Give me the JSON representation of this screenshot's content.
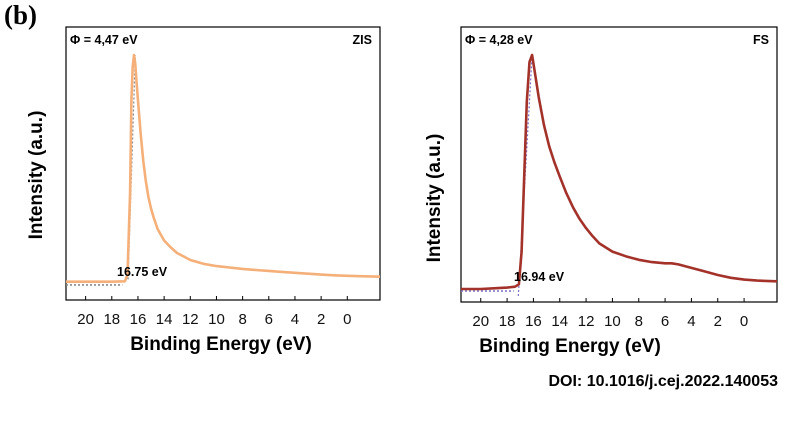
{
  "figure": {
    "panel_label": "(b)",
    "doi": "DOI: 10.1016/j.cej.2022.140053"
  },
  "chart_data": [
    {
      "type": "line",
      "sample_label": "ZIS",
      "work_function_label": "Φ = 4,47 eV",
      "cutoff_label": "16.75 eV",
      "cutoff_value": 16.75,
      "xlabel": "Binding Energy (eV)",
      "ylabel": "Intensity (a.u.)",
      "x_ticks": [
        "20",
        "18",
        "16",
        "14",
        "12",
        "10",
        "8",
        "6",
        "4",
        "2",
        "0"
      ],
      "x_tick_values": [
        20,
        18,
        16,
        14,
        12,
        10,
        8,
        6,
        4,
        2,
        0
      ],
      "xlim": [
        21.5,
        -2.5
      ],
      "ylim": [
        0,
        100
      ],
      "x_reversed": true,
      "grid": false,
      "line_color": "#f5b07a",
      "fit_color": "#8a8a8a",
      "x": [
        21.5,
        20,
        18,
        17,
        16.8,
        16.6,
        16.5,
        16.4,
        16.3,
        16.2,
        16.1,
        16.0,
        15.8,
        15.6,
        15.4,
        15.2,
        15.0,
        14.8,
        14.5,
        14.2,
        14.0,
        13.5,
        13.0,
        12.5,
        12.0,
        11.0,
        10.0,
        9.0,
        8.0,
        7.0,
        6.0,
        5.0,
        4.0,
        3.0,
        2.0,
        1.0,
        0.0,
        -1.0,
        -2.5
      ],
      "y": [
        1,
        1,
        1,
        1.2,
        4,
        40,
        80,
        95,
        100,
        96,
        88,
        80,
        66,
        54,
        45,
        38,
        33,
        29,
        24,
        21,
        19,
        16,
        13.5,
        12,
        10.5,
        8.8,
        7.8,
        7.2,
        6.6,
        6.1,
        5.7,
        5.3,
        4.9,
        4.5,
        4.1,
        3.8,
        3.6,
        3.4,
        3.2
      ],
      "fit_x": [
        21.5,
        17.2
      ],
      "fit_y": [
        0.5,
        0.5
      ],
      "edge_x": [
        16.75,
        16.2
      ],
      "edge_y": [
        2,
        100
      ]
    },
    {
      "type": "line",
      "sample_label": "FS",
      "work_function_label": "Φ = 4,28 eV",
      "cutoff_label": "16.94 eV",
      "cutoff_value": 16.94,
      "xlabel": "Binding Energy (eV)",
      "ylabel": "Intensity (a.u.)",
      "x_ticks": [
        "20",
        "18",
        "16",
        "14",
        "12",
        "10",
        "8",
        "6",
        "4",
        "2",
        "0"
      ],
      "x_tick_values": [
        20,
        18,
        16,
        14,
        12,
        10,
        8,
        6,
        4,
        2,
        0
      ],
      "xlim": [
        21.5,
        -2.5
      ],
      "ylim": [
        0,
        100
      ],
      "x_reversed": true,
      "grid": false,
      "line_color": "#a3322a",
      "fit_color": "#7b6fc4",
      "x": [
        21.5,
        20,
        19,
        18,
        17.4,
        17.1,
        16.9,
        16.7,
        16.5,
        16.3,
        16.1,
        15.9,
        15.6,
        15.2,
        14.8,
        14.4,
        14.0,
        13.5,
        13.0,
        12.5,
        12.0,
        11.5,
        11.0,
        10.0,
        9.0,
        8.0,
        7.0,
        6.0,
        5.5,
        5.0,
        4.0,
        3.0,
        2.0,
        1.0,
        0.0,
        -1.0,
        -2.5
      ],
      "y": [
        0,
        0,
        0.3,
        0.6,
        1,
        2,
        16,
        48,
        80,
        97,
        100,
        93,
        82,
        70,
        61,
        54,
        48,
        41,
        35,
        30,
        26,
        22.5,
        19.5,
        16,
        14,
        12.5,
        11.5,
        11,
        11,
        10.5,
        9,
        7.5,
        6,
        4.8,
        4,
        3.6,
        3.3
      ],
      "fit_x": [
        21.5,
        17.5
      ],
      "fit_y": [
        0,
        0
      ],
      "edge_x": [
        17.15,
        16.1
      ],
      "edge_y": [
        -3,
        100
      ]
    }
  ]
}
